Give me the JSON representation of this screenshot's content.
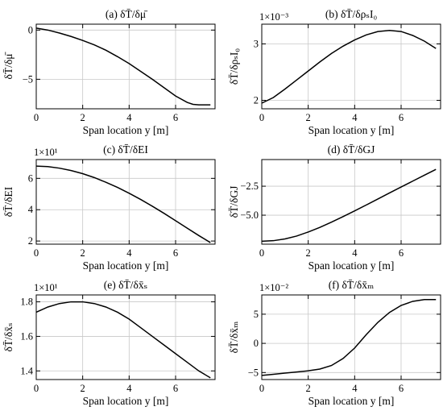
{
  "chart_data": [
    {
      "type": "line",
      "title": "(a) δT̄/δμ̄",
      "xlabel": "Span location y [m]",
      "ylabel": "δT̄/δμ̄",
      "xlim": [
        0,
        7.7
      ],
      "ylim": [
        -8.0,
        0.6
      ],
      "xticks": [
        0,
        2,
        4,
        6
      ],
      "yticks": [
        0,
        -5
      ],
      "xtick_labels": [
        "0",
        "2",
        "4",
        "6"
      ],
      "ytick_labels": [
        "0",
        "−5"
      ],
      "exponent_label": "",
      "grid": true,
      "series": [
        {
          "x": [
            0,
            0.5,
            1.0,
            1.5,
            2.0,
            2.5,
            3.0,
            3.5,
            4.0,
            4.5,
            5.0,
            5.5,
            6.0,
            6.5,
            6.75,
            7.0,
            7.25,
            7.5
          ],
          "values": [
            0.2,
            0.0,
            -0.3,
            -0.65,
            -1.05,
            -1.5,
            -2.05,
            -2.7,
            -3.4,
            -4.2,
            -5.0,
            -5.85,
            -6.7,
            -7.35,
            -7.55,
            -7.6,
            -7.6,
            -7.6
          ]
        }
      ]
    },
    {
      "type": "line",
      "title": "(b) δT̄/δρₛI₀",
      "xlabel": "Span location y [m]",
      "ylabel": "δT̄/δρₛI₀",
      "xlim": [
        0,
        7.7
      ],
      "ylim": [
        1.85,
        3.35
      ],
      "xticks": [
        0,
        2,
        4,
        6
      ],
      "yticks": [
        2,
        3
      ],
      "xtick_labels": [
        "0",
        "2",
        "4",
        "6"
      ],
      "ytick_labels": [
        "2",
        "3"
      ],
      "exponent_label": "1×10⁻³",
      "grid": true,
      "series": [
        {
          "x": [
            0,
            0.5,
            1.0,
            1.5,
            2.0,
            2.5,
            3.0,
            3.5,
            4.0,
            4.5,
            5.0,
            5.5,
            6.0,
            6.5,
            7.0,
            7.5
          ],
          "values": [
            1.95,
            2.05,
            2.2,
            2.36,
            2.52,
            2.68,
            2.83,
            2.96,
            3.07,
            3.16,
            3.22,
            3.24,
            3.22,
            3.15,
            3.05,
            2.92
          ]
        }
      ]
    },
    {
      "type": "line",
      "title": "(c) δT̄/δEI",
      "xlabel": "Span location y [m]",
      "ylabel": "δT̄/δEI",
      "xlim": [
        0,
        7.7
      ],
      "ylim": [
        1.8,
        7.2
      ],
      "xticks": [
        0,
        2,
        4,
        6
      ],
      "yticks": [
        2,
        4,
        6
      ],
      "xtick_labels": [
        "0",
        "2",
        "4",
        "6"
      ],
      "ytick_labels": [
        "2",
        "4",
        "6"
      ],
      "exponent_label": "1×10¹",
      "grid": true,
      "series": [
        {
          "x": [
            0,
            0.5,
            1.0,
            1.5,
            2.0,
            2.5,
            3.0,
            3.5,
            4.0,
            4.5,
            5.0,
            5.5,
            6.0,
            6.5,
            7.0,
            7.5
          ],
          "values": [
            6.78,
            6.75,
            6.65,
            6.5,
            6.3,
            6.05,
            5.75,
            5.42,
            5.05,
            4.65,
            4.22,
            3.77,
            3.3,
            2.82,
            2.35,
            1.9
          ]
        }
      ]
    },
    {
      "type": "line",
      "title": "(d) δT̄/δGJ",
      "xlabel": "Span location y [m]",
      "ylabel": "δT̄/δGJ",
      "xlim": [
        0,
        7.7
      ],
      "ylim": [
        -7.5,
        -0.2
      ],
      "xticks": [
        0,
        2,
        4,
        6
      ],
      "yticks": [
        -2.5,
        -5.0
      ],
      "xtick_labels": [
        "0",
        "2",
        "4",
        "6"
      ],
      "ytick_labels": [
        "−2.5",
        "−5.0"
      ],
      "exponent_label": "",
      "grid": true,
      "series": [
        {
          "x": [
            0,
            0.5,
            1.0,
            1.5,
            2.0,
            2.5,
            3.0,
            3.5,
            4.0,
            4.5,
            5.0,
            5.5,
            6.0,
            6.5,
            7.0,
            7.5
          ],
          "values": [
            -7.25,
            -7.2,
            -7.05,
            -6.8,
            -6.45,
            -6.05,
            -5.6,
            -5.12,
            -4.63,
            -4.12,
            -3.6,
            -3.08,
            -2.57,
            -2.06,
            -1.55,
            -1.05
          ]
        }
      ]
    },
    {
      "type": "line",
      "title": "(e) δT̄/δx̄ₛ",
      "xlabel": "Span location y [m]",
      "ylabel": "δT̄/δx̄ₛ",
      "xlim": [
        0,
        7.7
      ],
      "ylim": [
        1.35,
        1.84
      ],
      "xticks": [
        0,
        2,
        4,
        6
      ],
      "yticks": [
        1.4,
        1.6,
        1.8
      ],
      "xtick_labels": [
        "0",
        "2",
        "4",
        "6"
      ],
      "ytick_labels": [
        "1.4",
        "1.6",
        "1.8"
      ],
      "exponent_label": "1×10¹",
      "grid": true,
      "series": [
        {
          "x": [
            0,
            0.5,
            1.0,
            1.5,
            2.0,
            2.5,
            3.0,
            3.5,
            4.0,
            4.5,
            5.0,
            5.5,
            6.0,
            6.5,
            7.0,
            7.5
          ],
          "values": [
            1.74,
            1.77,
            1.79,
            1.8,
            1.8,
            1.79,
            1.77,
            1.74,
            1.7,
            1.65,
            1.6,
            1.55,
            1.5,
            1.45,
            1.4,
            1.36
          ]
        }
      ]
    },
    {
      "type": "line",
      "title": "(f) δT̄/δx̄ₘ",
      "xlabel": "Span location y [m]",
      "ylabel": "δT̄/δx̄ₘ",
      "xlim": [
        0,
        7.7
      ],
      "ylim": [
        -6.2,
        8.3
      ],
      "xticks": [
        0,
        2,
        4,
        6
      ],
      "yticks": [
        -5,
        0,
        5
      ],
      "xtick_labels": [
        "0",
        "2",
        "4",
        "6"
      ],
      "ytick_labels": [
        "−5",
        "0",
        "5"
      ],
      "exponent_label": "1×10⁻²",
      "grid": true,
      "series": [
        {
          "x": [
            0,
            0.5,
            1.0,
            1.5,
            2.0,
            2.5,
            3.0,
            3.5,
            4.0,
            4.5,
            5.0,
            5.5,
            6.0,
            6.5,
            7.0,
            7.5
          ],
          "values": [
            -5.5,
            -5.3,
            -5.1,
            -4.9,
            -4.7,
            -4.4,
            -3.8,
            -2.6,
            -0.8,
            1.5,
            3.6,
            5.3,
            6.5,
            7.2,
            7.5,
            7.5
          ]
        }
      ]
    }
  ]
}
